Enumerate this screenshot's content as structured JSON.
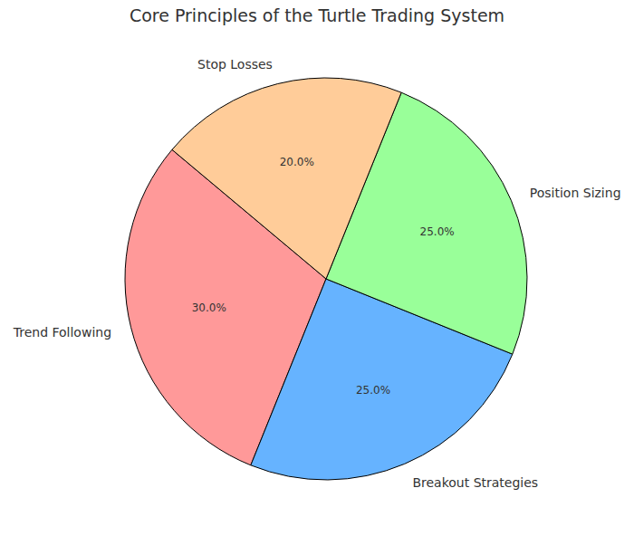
{
  "chart_data": {
    "type": "pie",
    "title": "Core Principles of the Turtle Trading System",
    "categories": [
      "Trend Following",
      "Breakout Strategies",
      "Position Sizing",
      "Stop Losses"
    ],
    "values": [
      30,
      25,
      25,
      20
    ],
    "value_labels": [
      "30.0%",
      "25.0%",
      "25.0%",
      "20.0%"
    ],
    "colors": [
      "#ff9999",
      "#66b3ff",
      "#99ff99",
      "#ffcc99"
    ],
    "data_labels": true
  }
}
